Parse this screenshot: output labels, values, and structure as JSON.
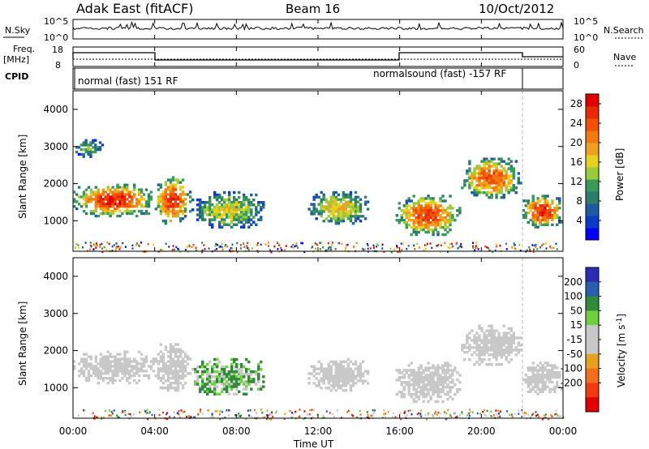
{
  "header": {
    "station": "Adak East (fitACF)",
    "beam": "Beam 16",
    "date": "10/Oct/2012"
  },
  "noise_panel": {
    "left_label": "N.Sky",
    "right_label": "N.Search",
    "ytick_top": "10^5",
    "ytick_bottom": "10^0"
  },
  "freq_panel": {
    "left_label_1": "Freq.",
    "left_label_2": "[MHz]",
    "right_label": "Nave",
    "left_ticks": [
      "18",
      "8"
    ],
    "right_ticks": [
      "60",
      "0"
    ]
  },
  "cpid_panel": {
    "label": "CPID",
    "segments": [
      {
        "text": "normal (fast) 151 RF"
      },
      {
        "text": "normalsound (fast) -157 RF"
      }
    ]
  },
  "x_axis": {
    "title": "Time UT",
    "ticks": [
      "00:00",
      "04:00",
      "08:00",
      "12:00",
      "16:00",
      "20:00",
      "00:00"
    ]
  },
  "y_axis": {
    "title": "Slant Range [km]",
    "ticks": [
      "4000",
      "3000",
      "2000",
      "1000"
    ]
  },
  "power_colorbar": {
    "title": "Power [dB]",
    "ticks": [
      "28",
      "24",
      "20",
      "16",
      "12",
      "8",
      "4"
    ],
    "colors": [
      "#0000ff",
      "#0a3cc8",
      "#1f5aa0",
      "#2e7d6b",
      "#3a9a5a",
      "#9acb3c",
      "#e8d020",
      "#f0a020",
      "#f07a10",
      "#f05008",
      "#e82a04",
      "#e00000"
    ]
  },
  "velocity_colorbar": {
    "title": "Velocity [m s^-1]",
    "ticks": [
      "200",
      "100",
      "50",
      "15",
      "-15",
      "-50",
      "-100",
      "-200"
    ],
    "colors": [
      "#2b2bb3",
      "#2a5fb0",
      "#2f8a3a",
      "#6fd040",
      "#c8c8c8",
      "#c8c8c8",
      "#e8a020",
      "#f07020",
      "#f03a10",
      "#e00000"
    ]
  },
  "chart_data": [
    {
      "type": "heatmap",
      "title": "Power",
      "xlabel": "Time UT",
      "ylabel": "Slant Range [km]",
      "xlim": [
        0,
        24
      ],
      "ylim": [
        180,
        4500
      ],
      "zlabel": "Power [dB]",
      "zlim": [
        0,
        30
      ],
      "echo_regions": [
        {
          "t_start": 0.0,
          "t_end": 4.0,
          "r_min": 1100,
          "r_max": 2000,
          "level": 27
        },
        {
          "t_start": 0.0,
          "t_end": 1.5,
          "r_min": 2700,
          "r_max": 3200,
          "level": 12
        },
        {
          "t_start": 4.0,
          "t_end": 5.8,
          "r_min": 900,
          "r_max": 2200,
          "level": 26
        },
        {
          "t_start": 5.8,
          "t_end": 9.5,
          "r_min": 800,
          "r_max": 1800,
          "level": 16
        },
        {
          "t_start": 11.5,
          "t_end": 14.5,
          "r_min": 900,
          "r_max": 1800,
          "level": 18
        },
        {
          "t_start": 15.8,
          "t_end": 19.0,
          "r_min": 600,
          "r_max": 1700,
          "level": 25
        },
        {
          "t_start": 19.0,
          "t_end": 22.0,
          "r_min": 1600,
          "r_max": 2700,
          "level": 24
        },
        {
          "t_start": 22.0,
          "t_end": 24.0,
          "r_min": 800,
          "r_max": 1700,
          "level": 27
        }
      ]
    },
    {
      "type": "heatmap",
      "title": "Velocity",
      "xlabel": "Time UT",
      "ylabel": "Slant Range [km]",
      "xlim": [
        0,
        24
      ],
      "ylim": [
        180,
        4500
      ],
      "zlabel": "Velocity [m s^-1]",
      "zlim": [
        -200,
        200
      ],
      "echo_regions": [
        {
          "t_start": 0.0,
          "t_end": 4.0,
          "r_min": 1100,
          "r_max": 2000,
          "level": 0
        },
        {
          "t_start": 4.0,
          "t_end": 5.8,
          "r_min": 900,
          "r_max": 2200,
          "level": 0
        },
        {
          "t_start": 5.8,
          "t_end": 9.5,
          "r_min": 800,
          "r_max": 1800,
          "level": 30
        },
        {
          "t_start": 11.5,
          "t_end": 14.5,
          "r_min": 900,
          "r_max": 1800,
          "level": 0
        },
        {
          "t_start": 15.8,
          "t_end": 19.0,
          "r_min": 600,
          "r_max": 1700,
          "level": 0
        },
        {
          "t_start": 19.0,
          "t_end": 22.0,
          "r_min": 1600,
          "r_max": 2700,
          "level": 0
        },
        {
          "t_start": 22.0,
          "t_end": 24.0,
          "r_min": 800,
          "r_max": 1700,
          "level": 0
        }
      ]
    }
  ]
}
